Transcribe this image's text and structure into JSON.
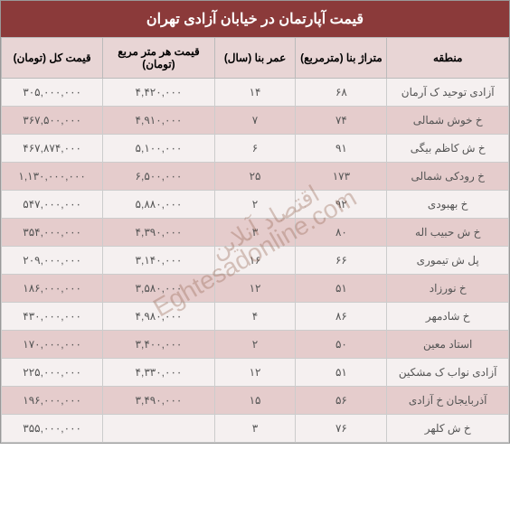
{
  "title": "قیمت آپارتمان در خیابان آزادی تهران",
  "columns": {
    "region": "منطقه",
    "area": "متراژ بنا (مترمربع)",
    "age": "عمر بنا (سال)",
    "price_sqm": "قیمت هر متر مربع (تومان)",
    "total": "قیمت کل (تومان)"
  },
  "rows": [
    {
      "region": "آزادی توحید ک آرمان",
      "area": "۶۸",
      "age": "۱۴",
      "price_sqm": "۴,۴۲۰,۰۰۰",
      "total": "۳۰۵,۰۰۰,۰۰۰"
    },
    {
      "region": "خ خوش شمالی",
      "area": "۷۴",
      "age": "۷",
      "price_sqm": "۴,۹۱۰,۰۰۰",
      "total": "۳۶۷,۵۰۰,۰۰۰"
    },
    {
      "region": "خ ش کاظم بیگی",
      "area": "۹۱",
      "age": "۶",
      "price_sqm": "۵,۱۰۰,۰۰۰",
      "total": "۴۶۷,۸۷۴,۰۰۰"
    },
    {
      "region": "خ رودکی شمالی",
      "area": "۱۷۳",
      "age": "۲۵",
      "price_sqm": "۶,۵۰۰,۰۰۰",
      "total": "۱,۱۳۰,۰۰۰,۰۰۰"
    },
    {
      "region": "خ بهبودی",
      "area": "۹۲",
      "age": "۲",
      "price_sqm": "۵,۸۸۰,۰۰۰",
      "total": "۵۴۷,۰۰۰,۰۰۰"
    },
    {
      "region": "خ ش حبیب اله",
      "area": "۸۰",
      "age": "۳",
      "price_sqm": "۴,۳۹۰,۰۰۰",
      "total": "۳۵۴,۰۰۰,۰۰۰"
    },
    {
      "region": "پل ش تیموری",
      "area": "۶۶",
      "age": "۱۶",
      "price_sqm": "۳,۱۴۰,۰۰۰",
      "total": "۲۰۹,۰۰۰,۰۰۰"
    },
    {
      "region": "خ نورزاد",
      "area": "۵۱",
      "age": "۱۲",
      "price_sqm": "۳,۵۸۰,۰۰۰",
      "total": "۱۸۶,۰۰۰,۰۰۰"
    },
    {
      "region": "خ شادمهر",
      "area": "۸۶",
      "age": "۴",
      "price_sqm": "۴,۹۸۰,۰۰۰",
      "total": "۴۳۰,۰۰۰,۰۰۰"
    },
    {
      "region": "استاد معین",
      "area": "۵۰",
      "age": "۲",
      "price_sqm": "۳,۴۰۰,۰۰۰",
      "total": "۱۷۰,۰۰۰,۰۰۰"
    },
    {
      "region": "آزادی نواب ک مشکین",
      "area": "۵۱",
      "age": "۱۲",
      "price_sqm": "۴,۳۳۰,۰۰۰",
      "total": "۲۲۵,۰۰۰,۰۰۰"
    },
    {
      "region": "آذربایجان خ آزادی",
      "area": "۵۶",
      "age": "۱۵",
      "price_sqm": "۳,۴۹۰,۰۰۰",
      "total": "۱۹۶,۰۰۰,۰۰۰"
    },
    {
      "region": "خ ش کلهر",
      "area": "۷۶",
      "age": "۳",
      "price_sqm": "",
      "total": "۳۵۵,۰۰۰,۰۰۰"
    }
  ],
  "watermark_en": "Eghtesadonline.com",
  "watermark_fa": "اقتصاد آنلاین",
  "colors": {
    "title_bg": "#8b3a3a",
    "header_bg": "#e8d5d5",
    "row_odd": "#f5f0f0",
    "row_even": "#e5cccc"
  }
}
